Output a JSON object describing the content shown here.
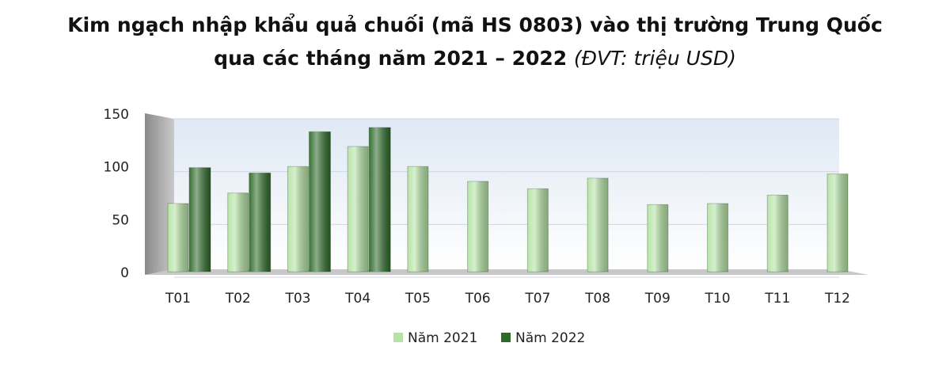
{
  "chart_data": {
    "type": "bar",
    "title": [
      "Kim ngạch nhập khẩu quả chuối (mã HS 0803) vào thị trường Trung Quốc",
      "qua các tháng năm 2021 – 2022"
    ],
    "unit_note": "(ĐVT: triệu USD)",
    "categories": [
      "T01",
      "T02",
      "T03",
      "T04",
      "T05",
      "T06",
      "T07",
      "T08",
      "T09",
      "T10",
      "T11",
      "T12"
    ],
    "series": [
      {
        "name": "Năm 2021",
        "color": "#b4e3a4",
        "values": [
          66,
          76,
          101,
          120,
          101,
          87,
          80,
          90,
          65,
          66,
          74,
          94
        ]
      },
      {
        "name": "Năm 2022",
        "color": "#2e6b2a",
        "values": [
          100,
          95,
          134,
          138,
          null,
          null,
          null,
          null,
          null,
          null,
          null,
          null
        ]
      }
    ],
    "ylim": [
      0,
      150
    ],
    "yticks": [
      0,
      50,
      100,
      150
    ],
    "grid": true
  }
}
